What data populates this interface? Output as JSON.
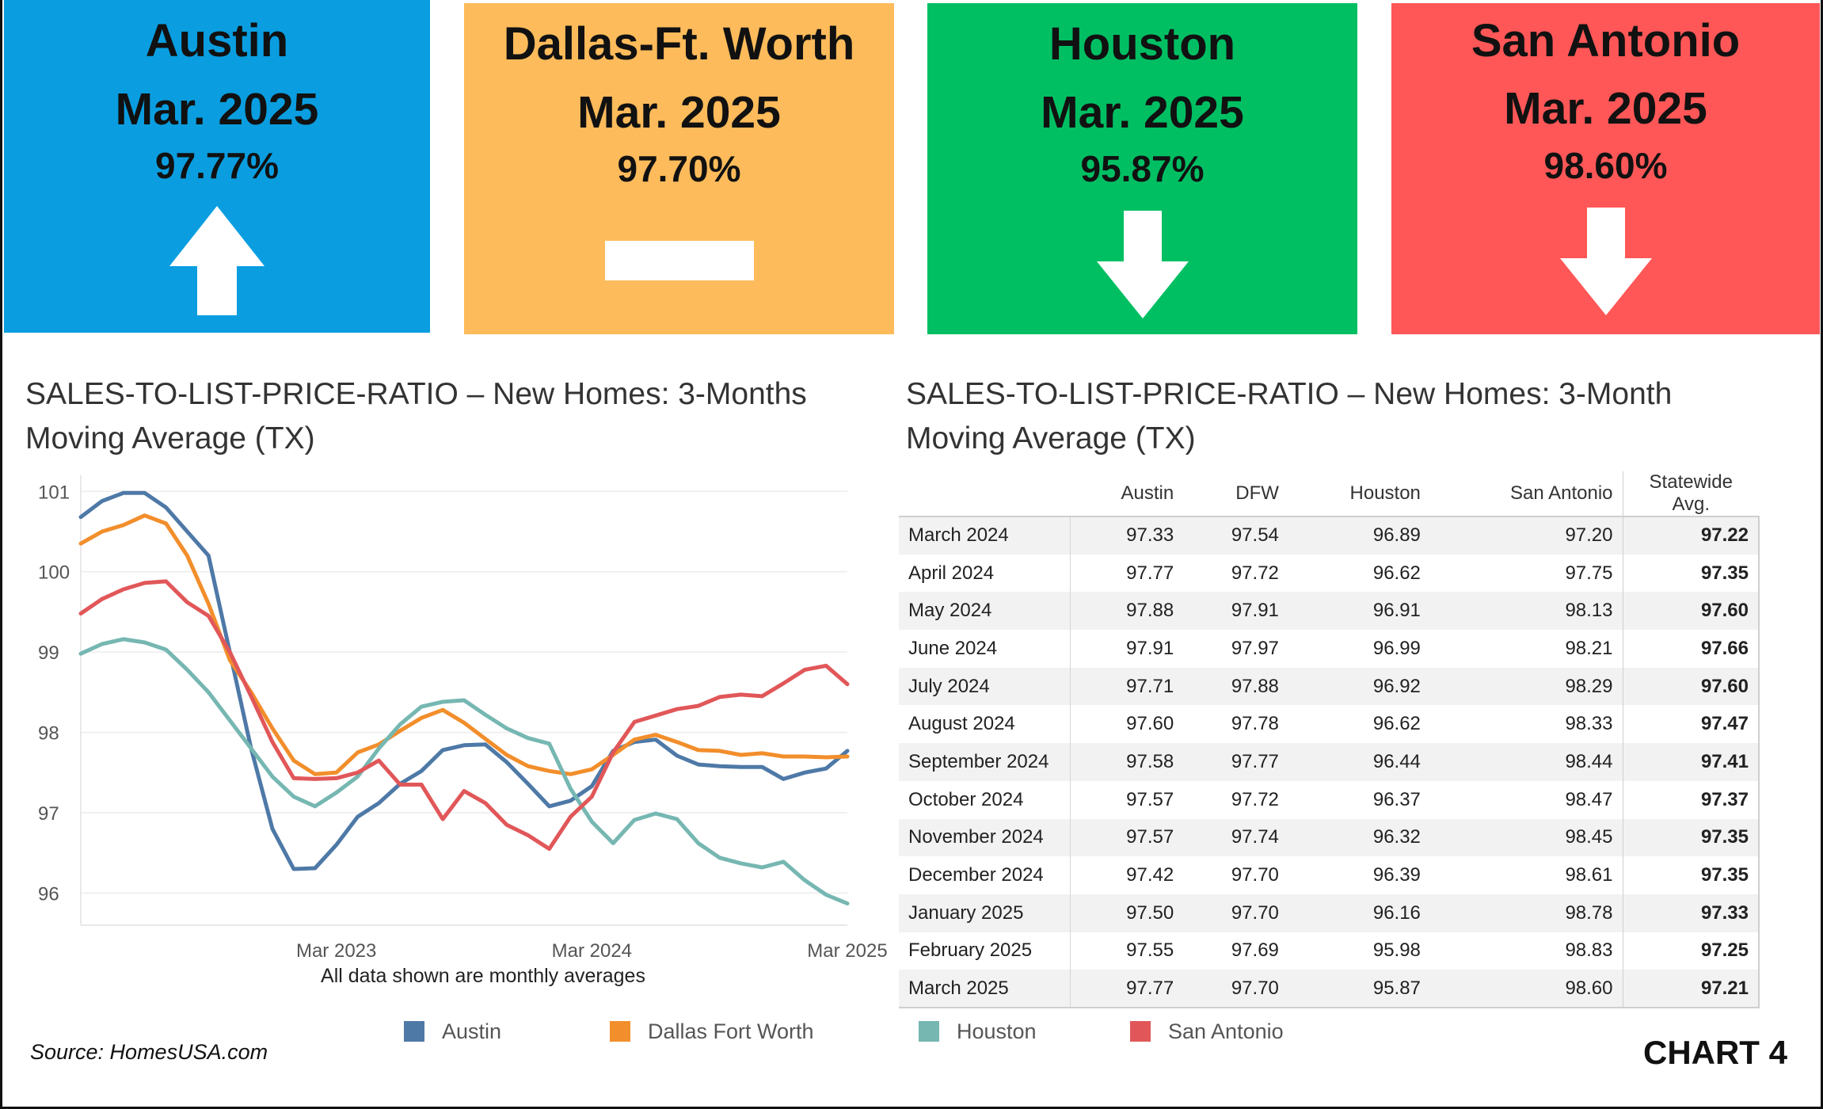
{
  "cards": [
    {
      "city": "Austin",
      "month": "Mar. 2025",
      "pct": "97.77%",
      "trend": "up",
      "color": "#0a9ee0"
    },
    {
      "city": "Dallas-Ft. Worth",
      "month": "Mar. 2025",
      "pct": "97.70%",
      "trend": "flat",
      "color": "#fdbb5b"
    },
    {
      "city": "Houston",
      "month": "Mar. 2025",
      "pct": "95.87%",
      "trend": "down",
      "color": "#00bf63"
    },
    {
      "city": "San Antonio",
      "month": "Mar. 2025",
      "pct": "98.60%",
      "trend": "down",
      "color": "#ff5757"
    }
  ],
  "left_title_line1": "SALES-TO-LIST-PRICE-RATIO – New Homes: 3-Months",
  "left_title_line2": "Moving Average (TX)",
  "right_title_line1": "SALES-TO-LIST-PRICE-RATIO – New Homes:  3-Month",
  "right_title_line2": "Moving Average (TX)",
  "footnote": "All data shown are monthly averages",
  "source": "Source: HomesUSA.com",
  "chart_label": "CHART 4",
  "chart_data": [
    {
      "type": "line",
      "title": "SALES-TO-LIST-PRICE-RATIO – New Homes: 3-Months Moving Average (TX)",
      "xlabel": "",
      "ylabel": "",
      "x": [
        "2022-03",
        "2022-04",
        "2022-05",
        "2022-06",
        "2022-07",
        "2022-08",
        "2022-09",
        "2022-10",
        "2022-11",
        "2022-12",
        "2023-01",
        "2023-02",
        "2023-03",
        "2023-04",
        "2023-05",
        "2023-06",
        "2023-07",
        "2023-08",
        "2023-09",
        "2023-10",
        "2023-11",
        "2023-12",
        "2024-01",
        "2024-02",
        "2024-03",
        "2024-04",
        "2024-05",
        "2024-06",
        "2024-07",
        "2024-08",
        "2024-09",
        "2024-10",
        "2024-11",
        "2024-12",
        "2025-01",
        "2025-02",
        "2025-03"
      ],
      "x_ticks": [
        "Mar 2023",
        "Mar 2024",
        "Mar 2025"
      ],
      "y_ticks": [
        96,
        97,
        98,
        99,
        100,
        101
      ],
      "ylim": [
        95.6,
        101.2
      ],
      "grid": true,
      "legend_position": "bottom",
      "series": [
        {
          "name": "Austin",
          "color": "#4e79a7",
          "values": [
            100.68,
            100.88,
            100.98,
            100.98,
            100.8,
            100.5,
            100.2,
            99.0,
            97.8,
            96.8,
            96.3,
            96.31,
            96.6,
            96.95,
            97.12,
            97.36,
            97.52,
            97.78,
            97.84,
            97.85,
            97.63,
            97.36,
            97.08,
            97.15,
            97.33,
            97.77,
            97.88,
            97.91,
            97.71,
            97.6,
            97.58,
            97.57,
            97.57,
            97.42,
            97.5,
            97.55,
            97.77
          ]
        },
        {
          "name": "Dallas Fort Worth",
          "color": "#f28e2b",
          "values": [
            100.35,
            100.5,
            100.58,
            100.7,
            100.6,
            100.2,
            99.6,
            98.9,
            98.5,
            98.05,
            97.65,
            97.48,
            97.5,
            97.75,
            97.85,
            98.02,
            98.18,
            98.28,
            98.12,
            97.92,
            97.72,
            97.58,
            97.52,
            97.48,
            97.54,
            97.72,
            97.91,
            97.97,
            97.88,
            97.78,
            97.77,
            97.72,
            97.74,
            97.7,
            97.7,
            97.69,
            97.7
          ]
        },
        {
          "name": "Houston",
          "color": "#76b7b2",
          "values": [
            98.98,
            99.1,
            99.16,
            99.12,
            99.03,
            98.78,
            98.5,
            98.15,
            97.8,
            97.45,
            97.2,
            97.08,
            97.25,
            97.45,
            97.8,
            98.1,
            98.32,
            98.38,
            98.4,
            98.22,
            98.05,
            97.93,
            97.86,
            97.3,
            96.89,
            96.62,
            96.91,
            96.99,
            96.92,
            96.62,
            96.44,
            96.37,
            96.32,
            96.39,
            96.16,
            95.98,
            95.87
          ]
        },
        {
          "name": "San Antonio",
          "color": "#e15759",
          "values": [
            99.48,
            99.66,
            99.78,
            99.86,
            99.88,
            99.62,
            99.45,
            99.0,
            98.45,
            97.88,
            97.43,
            97.42,
            97.43,
            97.5,
            97.65,
            97.35,
            97.35,
            96.92,
            97.27,
            97.12,
            96.85,
            96.72,
            96.55,
            96.95,
            97.2,
            97.75,
            98.13,
            98.21,
            98.29,
            98.33,
            98.44,
            98.47,
            98.45,
            98.61,
            98.78,
            98.83,
            98.6
          ]
        }
      ]
    },
    {
      "type": "table",
      "title": "SALES-TO-LIST-PRICE-RATIO – New Homes:  3-Month Moving Average (TX)",
      "columns": [
        "",
        "Austin",
        "DFW",
        "Houston",
        "San Antonio",
        "Statewide Avg."
      ],
      "rows": [
        [
          "March 2024",
          "97.33",
          "97.54",
          "96.89",
          "97.20",
          "97.22"
        ],
        [
          "April 2024",
          "97.77",
          "97.72",
          "96.62",
          "97.75",
          "97.35"
        ],
        [
          "May 2024",
          "97.88",
          "97.91",
          "96.91",
          "98.13",
          "97.60"
        ],
        [
          "June 2024",
          "97.91",
          "97.97",
          "96.99",
          "98.21",
          "97.66"
        ],
        [
          "July 2024",
          "97.71",
          "97.88",
          "96.92",
          "98.29",
          "97.60"
        ],
        [
          "August 2024",
          "97.60",
          "97.78",
          "96.62",
          "98.33",
          "97.47"
        ],
        [
          "September 2024",
          "97.58",
          "97.77",
          "96.44",
          "98.44",
          "97.41"
        ],
        [
          "October 2024",
          "97.57",
          "97.72",
          "96.37",
          "98.47",
          "97.37"
        ],
        [
          "November 2024",
          "97.57",
          "97.74",
          "96.32",
          "98.45",
          "97.35"
        ],
        [
          "December 2024",
          "97.42",
          "97.70",
          "96.39",
          "98.61",
          "97.35"
        ],
        [
          "January 2025",
          "97.50",
          "97.70",
          "96.16",
          "98.78",
          "97.33"
        ],
        [
          "February 2025",
          "97.55",
          "97.69",
          "95.98",
          "98.83",
          "97.25"
        ],
        [
          "March 2025",
          "97.77",
          "97.70",
          "95.87",
          "98.60",
          "97.21"
        ]
      ]
    }
  ]
}
